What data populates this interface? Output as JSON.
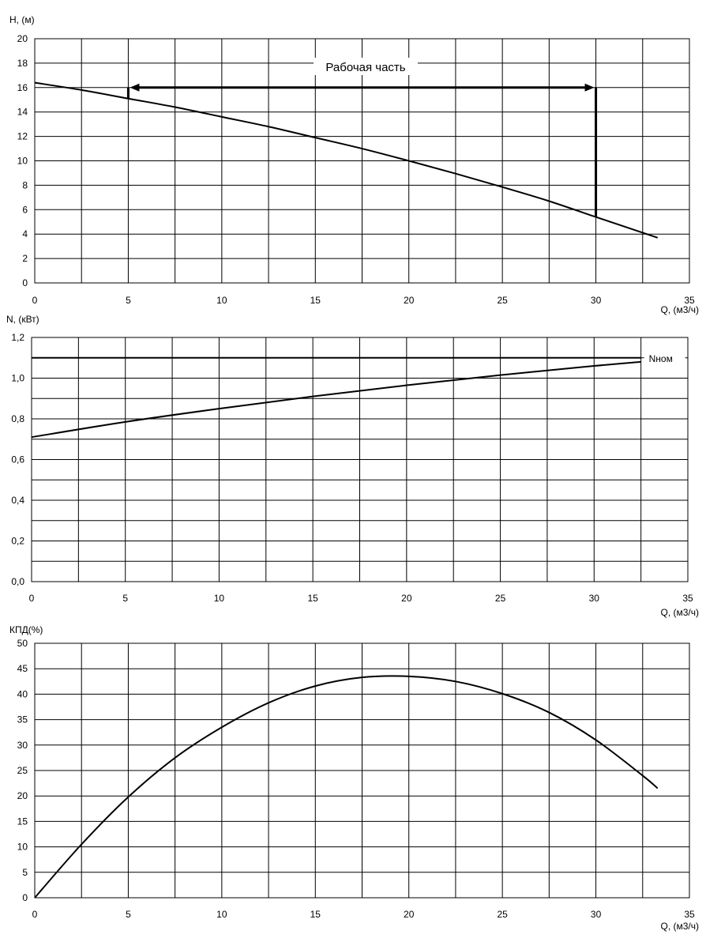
{
  "chart_data": [
    {
      "type": "line",
      "ylabel": "H, (м)",
      "xlabel": "Q, (м3/ч)",
      "xlim": [
        0,
        35
      ],
      "ylim": [
        0,
        20
      ],
      "x_ticks": [
        0,
        5,
        10,
        15,
        20,
        25,
        30,
        35
      ],
      "x_tick_labels": [
        "0",
        "5",
        "10",
        "15",
        "20",
        "25",
        "30",
        "35"
      ],
      "y_ticks": [
        0,
        2,
        4,
        6,
        8,
        10,
        12,
        14,
        16,
        18,
        20
      ],
      "y_tick_labels": [
        "0",
        "2",
        "4",
        "6",
        "8",
        "10",
        "12",
        "14",
        "16",
        "18",
        "20"
      ],
      "grid": true,
      "series": [
        {
          "x": [
            0,
            2.5,
            5,
            7.5,
            10,
            12.5,
            15,
            17.5,
            20,
            22.5,
            25,
            27.5,
            30,
            33.3
          ],
          "y": [
            16.4,
            15.8,
            15.1,
            14.4,
            13.6,
            12.8,
            11.9,
            11.0,
            10.0,
            8.95,
            7.85,
            6.7,
            5.4,
            3.7
          ]
        }
      ],
      "annotations": {
        "working_range_label": "Рабочая часть",
        "working_range_q": [
          5,
          30
        ],
        "arrow_level_h": 16,
        "left_marker_h": [
          15.1,
          16
        ],
        "right_marker_h": [
          5.4,
          16
        ]
      }
    },
    {
      "type": "line",
      "ylabel": "N, (кВт)",
      "xlabel": "Q, (м3/ч)",
      "xlim": [
        0,
        35
      ],
      "ylim": [
        0,
        1.2
      ],
      "x_ticks": [
        0,
        5,
        10,
        15,
        20,
        25,
        30,
        35
      ],
      "x_tick_labels": [
        "0",
        "5",
        "10",
        "15",
        "20",
        "25",
        "30",
        "35"
      ],
      "y_ticks": [
        0,
        0.1,
        0.2,
        0.3,
        0.4,
        0.5,
        0.6,
        0.7,
        0.8,
        0.9,
        1.0,
        1.1,
        1.2
      ],
      "y_tick_labels": [
        "0,0",
        "",
        "0,2",
        "",
        "0,4",
        "",
        "0,6",
        "",
        "0,8",
        "",
        "1,0",
        "",
        "1,2"
      ],
      "grid": true,
      "series": [
        {
          "x": [
            0,
            5,
            10,
            15,
            20,
            25,
            30,
            32.5
          ],
          "y": [
            0.71,
            0.785,
            0.85,
            0.91,
            0.965,
            1.015,
            1.06,
            1.08
          ]
        }
      ],
      "reference_line": {
        "label": "Nном",
        "y": 1.1,
        "x_end": 32.5
      }
    },
    {
      "type": "line",
      "ylabel": "КПД(%)",
      "xlabel": "Q, (м3/ч)",
      "xlim": [
        0,
        35
      ],
      "ylim": [
        0,
        50
      ],
      "x_ticks": [
        0,
        5,
        10,
        15,
        20,
        25,
        30,
        35
      ],
      "x_tick_labels": [
        "0",
        "5",
        "10",
        "15",
        "20",
        "25",
        "30",
        "35"
      ],
      "y_ticks": [
        0,
        5,
        10,
        15,
        20,
        25,
        30,
        35,
        40,
        45,
        50
      ],
      "y_tick_labels": [
        "0",
        "5",
        "10",
        "15",
        "20",
        "25",
        "30",
        "35",
        "40",
        "45",
        "50"
      ],
      "grid": true,
      "series": [
        {
          "x": [
            0,
            2.5,
            5,
            7.5,
            10,
            12.5,
            15,
            17.5,
            20,
            22.5,
            25,
            27.5,
            30,
            32.5,
            33.3
          ],
          "y": [
            0,
            10.5,
            19.8,
            27.5,
            33.5,
            38.3,
            41.6,
            43.3,
            43.5,
            42.5,
            40.1,
            36.4,
            31.0,
            24.0,
            21.5
          ]
        }
      ]
    }
  ]
}
